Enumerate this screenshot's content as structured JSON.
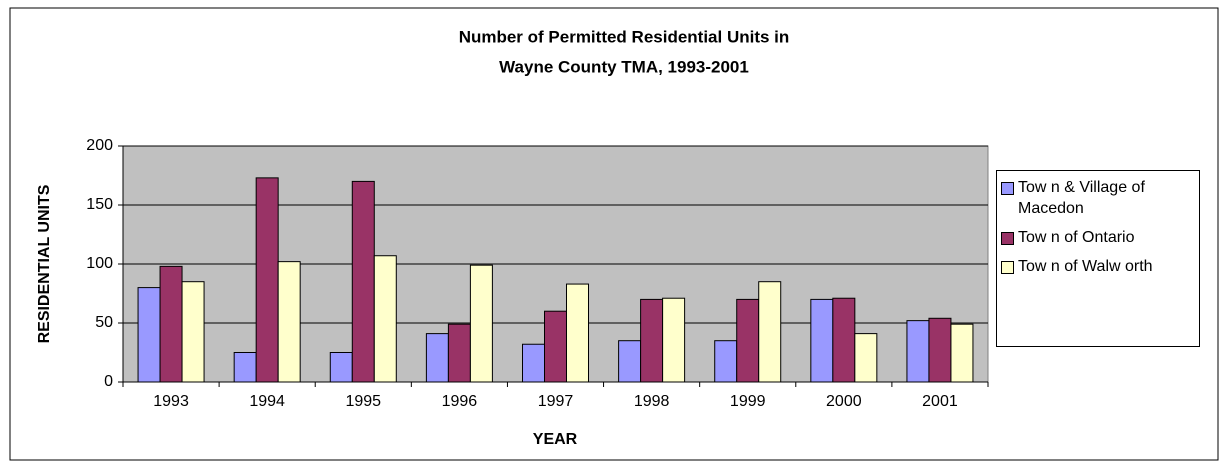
{
  "chart_data": {
    "type": "bar",
    "title": [
      "Number of Permitted Residential Units in",
      "Wayne County TMA, 1993-2001"
    ],
    "x_label": "YEAR",
    "y_label": "RESIDENTIAL UNITS",
    "categories": [
      "1993",
      "1994",
      "1995",
      "1996",
      "1997",
      "1998",
      "1999",
      "2000",
      "2001"
    ],
    "series": [
      {
        "name": "Tow n & Village of Macedon",
        "color": "#9999ff",
        "values": [
          80,
          25,
          25,
          41,
          32,
          35,
          35,
          70,
          52
        ]
      },
      {
        "name": "Tow n of Ontario",
        "color": "#993366",
        "values": [
          98,
          173,
          170,
          49,
          60,
          70,
          70,
          71,
          54
        ]
      },
      {
        "name": "Tow n of Walw orth",
        "color": "#ffffcc",
        "values": [
          85,
          102,
          107,
          99,
          83,
          71,
          85,
          41,
          49
        ]
      }
    ],
    "ylim": [
      0,
      200
    ],
    "yticks": [
      0,
      50,
      100,
      150,
      200
    ],
    "grid": true,
    "legend": "right"
  }
}
